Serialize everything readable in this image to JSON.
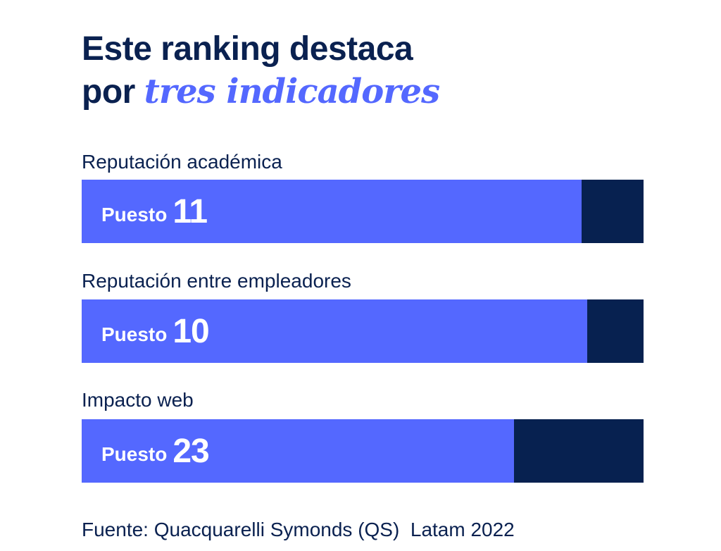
{
  "chart_data": {
    "type": "bar",
    "title_line1": "Este ranking destaca",
    "title_line2_plain": "por",
    "title_line2_emphasis": "tres indicadores",
    "categories": [
      "Reputación académica",
      "Reputación entre empleadores",
      "Impacto web"
    ],
    "value_prefix": "Puesto",
    "values": [
      11,
      10,
      23
    ],
    "fill_fraction": [
      0.89,
      0.9,
      0.77
    ],
    "source": "Fuente: Quacquarelli Symonds (QS)  Latam 2022",
    "colors": {
      "fill": "#5468ff",
      "track": "#072150",
      "text": "#0a2150"
    }
  }
}
